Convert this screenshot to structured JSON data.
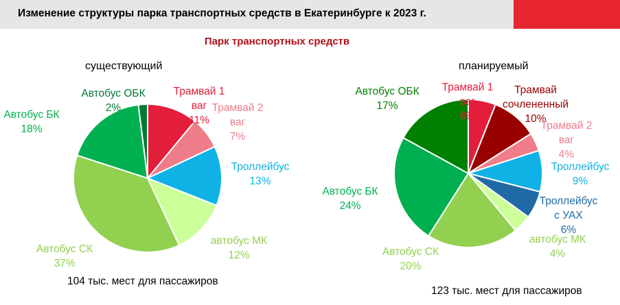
{
  "header": {
    "title": "Изменение структуры парка транспортных средств в Екатеринбурге  к 2023 г."
  },
  "subtitle": "Парк транспортных средств",
  "colors": {
    "header_bg": "#e6e6e6",
    "header_accent": "#e8262f",
    "subtitle": "#b01018"
  },
  "chart_data": [
    {
      "type": "pie",
      "title": "существующий",
      "caption": "104 тыс. мест для пассажиров",
      "slices": [
        {
          "label": [
            "Трамвай 1",
            "ваг",
            "11%"
          ],
          "value": 11,
          "color": "#e31e3a",
          "label_color": "#e31e3a"
        },
        {
          "label": [
            "Трамвай 2",
            "ваг",
            "7%"
          ],
          "value": 7,
          "color": "#ef7c89",
          "label_color": "#ef7c89"
        },
        {
          "label": [
            "Троллейбус",
            "13%"
          ],
          "value": 13,
          "color": "#10b2e6",
          "label_color": "#10b2e6"
        },
        {
          "label": [
            "автобус МК",
            "12%"
          ],
          "value": 12,
          "color": "#ccff99",
          "label_color": "#92d050"
        },
        {
          "label": [
            "Автобус СК",
            "37%"
          ],
          "value": 37,
          "color": "#92d050",
          "label_color": "#92d050"
        },
        {
          "label": [
            "Автобус БК",
            "18%"
          ],
          "value": 18,
          "color": "#00b050",
          "label_color": "#00b050"
        },
        {
          "label": [
            "Автобус ОБК",
            "2%"
          ],
          "value": 2,
          "color": "#007a33",
          "label_color": "#007a33"
        }
      ]
    },
    {
      "type": "pie",
      "title": "планируемый",
      "caption": "123 тыс. мест для пассажиров",
      "slices": [
        {
          "label": [
            "Трамвай 1",
            "ваг",
            "6%"
          ],
          "value": 6,
          "color": "#e31e3a",
          "label_color": "#e31e3a"
        },
        {
          "label": [
            "Трамвай",
            "сочлененный",
            "10%"
          ],
          "value": 10,
          "color": "#990000",
          "label_color": "#990000"
        },
        {
          "label": [
            "Трамвай 2",
            "ваг",
            "4%"
          ],
          "value": 4,
          "color": "#ef7c89",
          "label_color": "#ef7c89"
        },
        {
          "label": [
            "Троллейбус",
            "9%"
          ],
          "value": 9,
          "color": "#10b2e6",
          "label_color": "#10b2e6"
        },
        {
          "label": [
            "Троллейбус",
            "с УАХ",
            "6%"
          ],
          "value": 6,
          "color": "#1f6aa5",
          "label_color": "#1f6aa5"
        },
        {
          "label": [
            "автобус МК",
            "4%"
          ],
          "value": 4,
          "color": "#ccff99",
          "label_color": "#92d050"
        },
        {
          "label": [
            "Автобус СК",
            "20%"
          ],
          "value": 20,
          "color": "#92d050",
          "label_color": "#92d050"
        },
        {
          "label": [
            "Автобус БК",
            "24%"
          ],
          "value": 24,
          "color": "#00b050",
          "label_color": "#00b050"
        },
        {
          "label": [
            "Автобус ОБК",
            "17%"
          ],
          "value": 17,
          "color": "#008000",
          "label_color": "#008000"
        }
      ]
    }
  ]
}
